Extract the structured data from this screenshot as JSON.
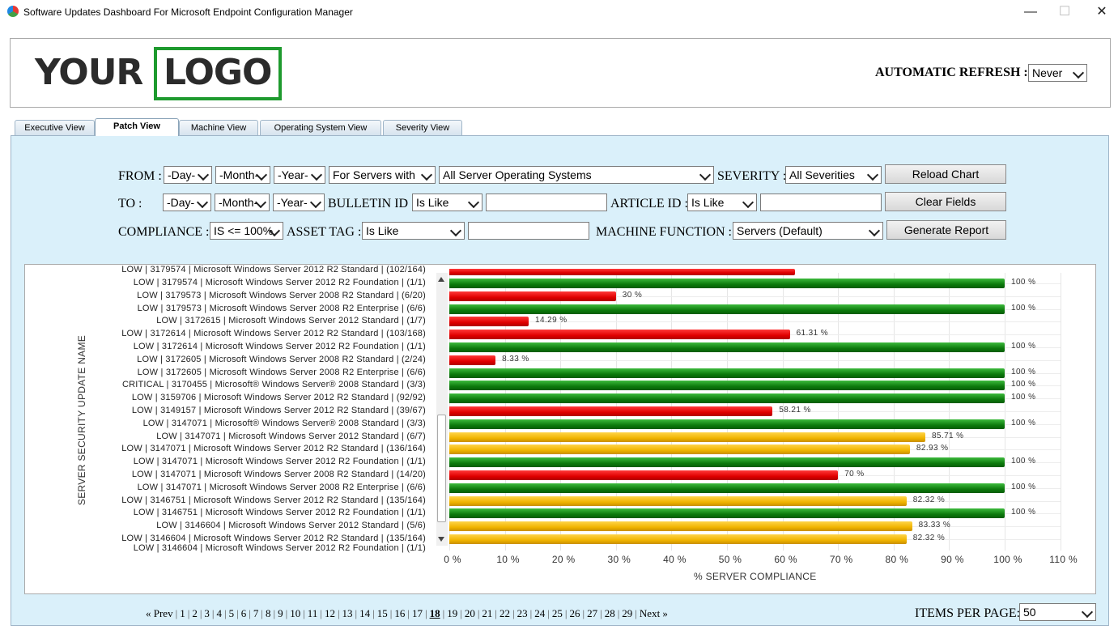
{
  "window": {
    "title": "Software Updates Dashboard For Microsoft Endpoint Configuration Manager",
    "minimize": "—",
    "maximize": "☐",
    "close": "✕"
  },
  "header": {
    "logo_left": "YOUR",
    "logo_right": "LOGO",
    "refresh_label": "AUTOMATIC REFRESH :",
    "refresh_value": "Never"
  },
  "tabs": [
    "Executive View",
    "Patch View",
    "Machine View",
    "Operating System View",
    "Severity View"
  ],
  "active_tab": "Patch View",
  "filters": {
    "from_label": "FROM :",
    "to_label": "TO :",
    "day": "-Day-",
    "month": "-Month-",
    "year": "-Year-",
    "for_servers": "For Servers with",
    "os": "All Server Operating Systems",
    "severity_label": "SEVERITY :",
    "severity_value": "All Severities",
    "bulletin_label": "BULLETIN ID :",
    "bulletin_op": "Is Like",
    "article_label": "ARTICLE ID :",
    "article_op": "Is Like",
    "compliance_label": "COMPLIANCE :",
    "compliance_value": "IS <= 100%",
    "asset_label": "ASSET TAG :",
    "asset_op": "Is Like",
    "machine_function_label": "MACHINE FUNCTION :",
    "machine_function_value": "Servers (Default)",
    "reload_button": "Reload Chart",
    "clear_button": "Clear Fields",
    "report_button": "Generate Report"
  },
  "chart_data": {
    "type": "bar",
    "orientation": "horizontal",
    "ylabel": "SERVER SECURITY UPDATE NAME",
    "xlabel": "% SERVER COMPLIANCE",
    "xlim": [
      0,
      110
    ],
    "xticks": [
      "0 %",
      "10 %",
      "20 %",
      "30 %",
      "40 %",
      "50 %",
      "60 %",
      "70 %",
      "80 %",
      "90 %",
      "100 %",
      "110 %"
    ],
    "colors": {
      "green": "#0c7a0c",
      "red": "#e00000",
      "amber": "#f0b400"
    },
    "top_partial": "LOW | 3179574 | Microsoft Windows Server 2012 R2 Standard | (102/164)",
    "bottom_partial": "LOW | 3146604 | Microsoft Windows Server 2012 R2 Foundation | (1/1)",
    "categories": [
      "LOW | 3179574 | Microsoft Windows Server 2012 R2 Foundation | (1/1)",
      "LOW | 3179573 | Microsoft Windows Server 2008 R2 Standard | (6/20)",
      "LOW | 3179573 | Microsoft Windows Server 2008 R2 Enterprise | (6/6)",
      "LOW | 3172615 | Microsoft Windows Server 2012 Standard | (1/7)",
      "LOW | 3172614 | Microsoft Windows Server 2012 R2 Standard | (103/168)",
      "LOW | 3172614 | Microsoft Windows Server 2012 R2 Foundation | (1/1)",
      "LOW | 3172605 | Microsoft Windows Server 2008 R2 Standard | (2/24)",
      "LOW | 3172605 | Microsoft Windows Server 2008 R2 Enterprise | (6/6)",
      "CRITICAL | 3170455 | Microsoft® Windows Server® 2008 Standard | (3/3)",
      "LOW | 3159706 | Microsoft Windows Server 2012 R2 Standard | (92/92)",
      "LOW | 3149157 | Microsoft Windows Server 2012 R2 Standard | (39/67)",
      "LOW | 3147071 | Microsoft® Windows Server® 2008 Standard | (3/3)",
      "LOW | 3147071 | Microsoft Windows Server 2012 Standard | (6/7)",
      "LOW | 3147071 | Microsoft Windows Server 2012 R2 Standard | (136/164)",
      "LOW | 3147071 | Microsoft Windows Server 2012 R2 Foundation | (1/1)",
      "LOW | 3147071 | Microsoft Windows Server 2008 R2 Standard | (14/20)",
      "LOW | 3147071 | Microsoft Windows Server 2008 R2 Enterprise | (6/6)",
      "LOW | 3146751 | Microsoft Windows Server 2012 R2 Standard | (135/164)",
      "LOW | 3146751 | Microsoft Windows Server 2012 R2 Foundation | (1/1)",
      "LOW | 3146604 | Microsoft Windows Server 2012 Standard | (5/6)",
      "LOW | 3146604 | Microsoft Windows Server 2012 R2 Standard | (135/164)"
    ],
    "values": [
      100,
      30,
      100,
      14.29,
      61.31,
      100,
      8.33,
      100,
      100,
      100,
      58.21,
      100,
      85.71,
      82.93,
      100,
      70,
      100,
      82.32,
      100,
      83.33,
      82.32
    ],
    "value_labels": [
      "100 %",
      "30 %",
      "100 %",
      "14.29 %",
      "61.31 %",
      "100 %",
      "8.33 %",
      "100 %",
      "100 %",
      "100 %",
      "58.21 %",
      "100 %",
      "85.71 %",
      "82.93 %",
      "100 %",
      "70 %",
      "100 %",
      "82.32 %",
      "100 %",
      "83.33 %",
      "82.32 %"
    ],
    "bar_colors": [
      "green",
      "red",
      "green",
      "red",
      "red",
      "green",
      "red",
      "green",
      "green",
      "green",
      "red",
      "green",
      "amber",
      "amber",
      "green",
      "red",
      "green",
      "amber",
      "green",
      "amber",
      "amber"
    ]
  },
  "pagination": {
    "prev": "« Prev",
    "next": "Next »",
    "pages": [
      "1",
      "2",
      "3",
      "4",
      "5",
      "6",
      "7",
      "8",
      "9",
      "10",
      "11",
      "12",
      "13",
      "14",
      "15",
      "16",
      "17",
      "18",
      "19",
      "20",
      "21",
      "22",
      "23",
      "24",
      "25",
      "26",
      "27",
      "28",
      "29"
    ],
    "current": "18",
    "items_per_page_label": "ITEMS PER PAGE:",
    "items_per_page_value": "50"
  }
}
